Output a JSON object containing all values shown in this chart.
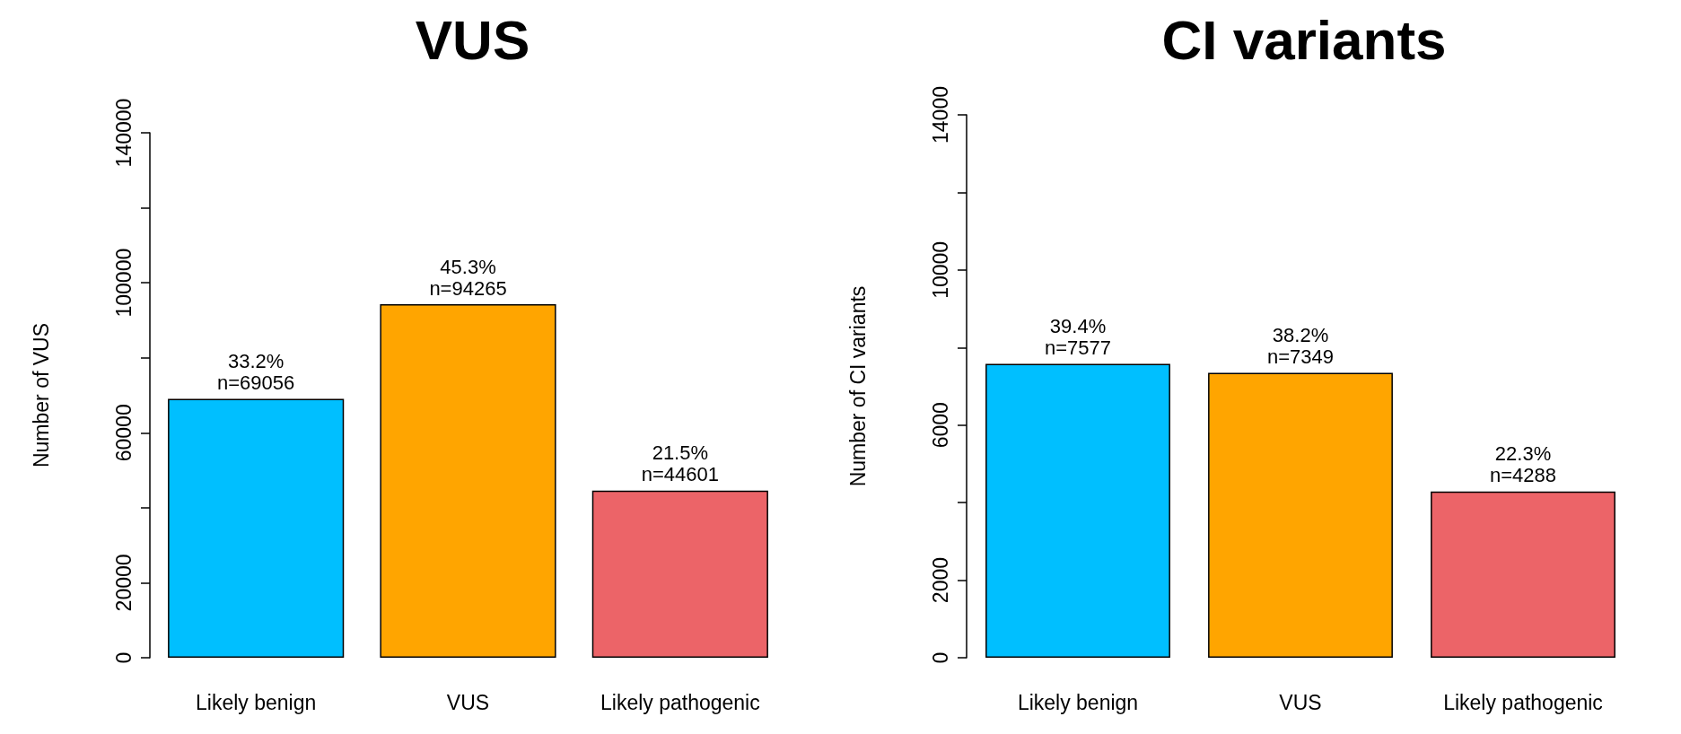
{
  "chart_data": [
    {
      "type": "bar",
      "title": "VUS",
      "ylabel": "Number of VUS",
      "categories": [
        "Likely benign",
        "VUS",
        "Likely pathogenic"
      ],
      "values": [
        69056,
        94265,
        44601
      ],
      "colors": [
        "#00bfff",
        "#ffa500",
        "#ec6468"
      ],
      "value_labels": [
        "33.2%\nn=69056",
        "45.3%\nn=94265",
        "21.5%\nn=44601"
      ],
      "ylim": [
        0,
        140000
      ],
      "yticks": [
        0,
        20000,
        {
          "value": 40000,
          "label": null
        },
        60000,
        {
          "value": 80000,
          "label": null
        },
        100000,
        {
          "value": 120000,
          "label": null
        },
        140000
      ]
    },
    {
      "type": "bar",
      "title": "CI variants",
      "ylabel": "Number of CI variants",
      "categories": [
        "Likely benign",
        "VUS",
        "Likely pathogenic"
      ],
      "values": [
        7577,
        7349,
        4288
      ],
      "colors": [
        "#00bfff",
        "#ffa500",
        "#ec6468"
      ],
      "value_labels": [
        "39.4%\nn=7577",
        "38.2%\nn=7349",
        "22.3%\nn=4288"
      ],
      "ylim": [
        0,
        14000
      ],
      "yticks": [
        0,
        2000,
        {
          "value": 4000,
          "label": null
        },
        6000,
        {
          "value": 8000,
          "label": null
        },
        10000,
        {
          "value": 12000,
          "label": null
        },
        14000
      ]
    }
  ]
}
